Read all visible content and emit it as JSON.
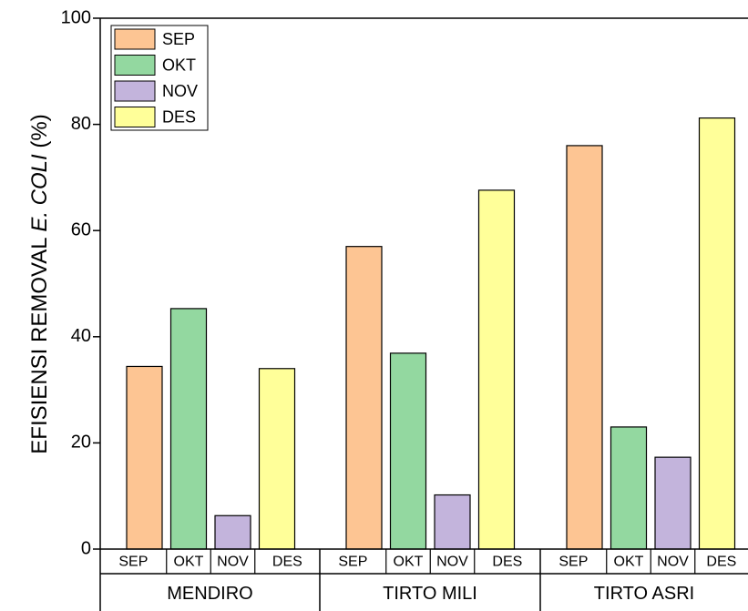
{
  "chart_data": {
    "type": "bar",
    "y_label": [
      "EFISIENSI REMOVAL ",
      "E. COLI",
      " (%)"
    ],
    "categories": [
      "MENDIRO",
      "TIRTO MILI",
      "TIRTO ASRI"
    ],
    "series": [
      {
        "name": "SEP",
        "color": "#fdc593",
        "values": [
          34.4,
          57.0,
          76.0
        ]
      },
      {
        "name": "OKT",
        "color": "#93d8a0",
        "values": [
          45.3,
          36.9,
          23.0
        ]
      },
      {
        "name": "NOV",
        "color": "#c3b4dc",
        "values": [
          6.3,
          10.2,
          17.3
        ]
      },
      {
        "name": "DES",
        "color": "#ffff99",
        "values": [
          34.0,
          67.6,
          81.2
        ]
      }
    ],
    "ylim": [
      0,
      100
    ],
    "yticks": [
      0,
      20,
      40,
      60,
      80,
      100
    ],
    "legend": "upper-left"
  }
}
